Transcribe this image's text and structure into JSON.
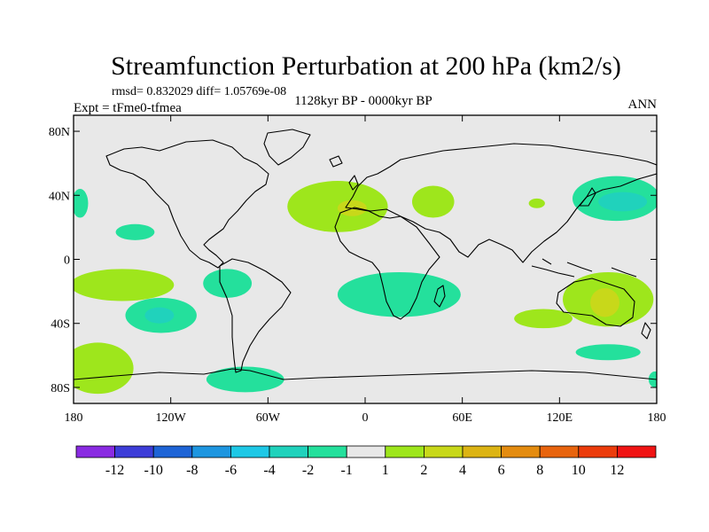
{
  "chart_data": {
    "type": "heatmap",
    "title": "Streamfunction Perturbation at 200 hPa (km2/s)",
    "stats_line": "rmsd= 0.832029 diff= 1.05769e-08",
    "left_label": "Expt = tFme0-tfmea",
    "center_label": "1128kyr BP - 0000kyr BP",
    "right_label": "ANN",
    "xlim": [
      -180,
      180
    ],
    "ylim": [
      -90,
      90
    ],
    "x_ticks": [
      {
        "value": -180,
        "label": "180"
      },
      {
        "value": -120,
        "label": "120W"
      },
      {
        "value": -60,
        "label": "60W"
      },
      {
        "value": 0,
        "label": "0"
      },
      {
        "value": 60,
        "label": "60E"
      },
      {
        "value": 120,
        "label": "120E"
      },
      {
        "value": 180,
        "label": "180"
      }
    ],
    "y_ticks": [
      {
        "value": 80,
        "label": "80N"
      },
      {
        "value": 40,
        "label": "40N"
      },
      {
        "value": 0,
        "label": "0"
      },
      {
        "value": -40,
        "label": "40S"
      },
      {
        "value": -80,
        "label": "80S"
      }
    ],
    "colorbar": {
      "colors": [
        "#8a2be2",
        "#3d3dd8",
        "#1e64d6",
        "#1e96e0",
        "#1ec8e6",
        "#20d2bc",
        "#24e09c",
        "#e8e8e8",
        "#9ee61c",
        "#c8d81a",
        "#dcb414",
        "#e48c10",
        "#e8640e",
        "#ec3c0c",
        "#f01414"
      ],
      "labels": [
        "-12",
        "-10",
        "-8",
        "-6",
        "-4",
        "-2",
        "-1",
        "1",
        "2",
        "4",
        "6",
        "8",
        "10",
        "12"
      ]
    },
    "regions": [
      {
        "name": "north-atlantic-africa",
        "level": 2,
        "lon": -17,
        "lat": 33,
        "rlon": 31,
        "rlat": 16
      },
      {
        "name": "north-africa-core",
        "level": 4,
        "lon": -8,
        "lat": 32,
        "rlon": 9,
        "rlat": 5
      },
      {
        "name": "arabia",
        "level": 2,
        "lon": 42,
        "lat": 36,
        "rlon": 13,
        "rlat": 10
      },
      {
        "name": "central-asia",
        "level": 2,
        "lon": 106,
        "lat": 35,
        "rlon": 5,
        "rlat": 3
      },
      {
        "name": "west-atlantic",
        "level": -1,
        "lon": -176,
        "lat": 35,
        "rlon": 5,
        "rlat": 9
      },
      {
        "name": "north-pacific",
        "level": -1,
        "lon": -142,
        "lat": 17,
        "rlon": 12,
        "rlat": 5
      },
      {
        "name": "japan-pacific",
        "level": -1,
        "lon": 155,
        "lat": 38,
        "rlon": 27,
        "rlat": 14
      },
      {
        "name": "japan-core",
        "level": -2,
        "lon": 159,
        "lat": 36,
        "rlon": 15,
        "rlat": 6
      },
      {
        "name": "tropical-pacific-band",
        "level": 2,
        "lon": -150,
        "lat": -16,
        "rlon": 32,
        "rlat": 10
      },
      {
        "name": "south-pacific",
        "level": -1,
        "lon": -126,
        "lat": -35,
        "rlon": 22,
        "rlat": 11
      },
      {
        "name": "south-pacific-core",
        "level": -2,
        "lon": -127,
        "lat": -35,
        "rlon": 9,
        "rlat": 5
      },
      {
        "name": "south-east-pacific",
        "level": -1,
        "lon": -85,
        "lat": -15,
        "rlon": 15,
        "rlat": 9
      },
      {
        "name": "south-atlantic-africa",
        "level": -1,
        "lon": 21,
        "lat": -22,
        "rlon": 38,
        "rlat": 14
      },
      {
        "name": "indian-australia",
        "level": 2,
        "lon": 150,
        "lat": -25,
        "rlon": 28,
        "rlat": 17
      },
      {
        "name": "australia-core",
        "level": 4,
        "lon": 148,
        "lat": -27,
        "rlon": 9,
        "rlat": 9
      },
      {
        "name": "south-indian",
        "level": 2,
        "lon": 110,
        "lat": -37,
        "rlon": 18,
        "rlat": 6
      },
      {
        "name": "southern-ocean-east",
        "level": -1,
        "lon": 150,
        "lat": -58,
        "rlon": 20,
        "rlat": 5
      },
      {
        "name": "southern-ocean-east-edge",
        "level": -1,
        "lon": 179,
        "lat": -75,
        "rlon": 4,
        "rlat": 5
      },
      {
        "name": "southern-pacific",
        "level": 2,
        "lon": -165,
        "lat": -68,
        "rlon": 22,
        "rlat": 16
      },
      {
        "name": "antarctic-drake",
        "level": -1,
        "lon": -74,
        "lat": -75,
        "rlon": 24,
        "rlat": 8
      }
    ]
  }
}
